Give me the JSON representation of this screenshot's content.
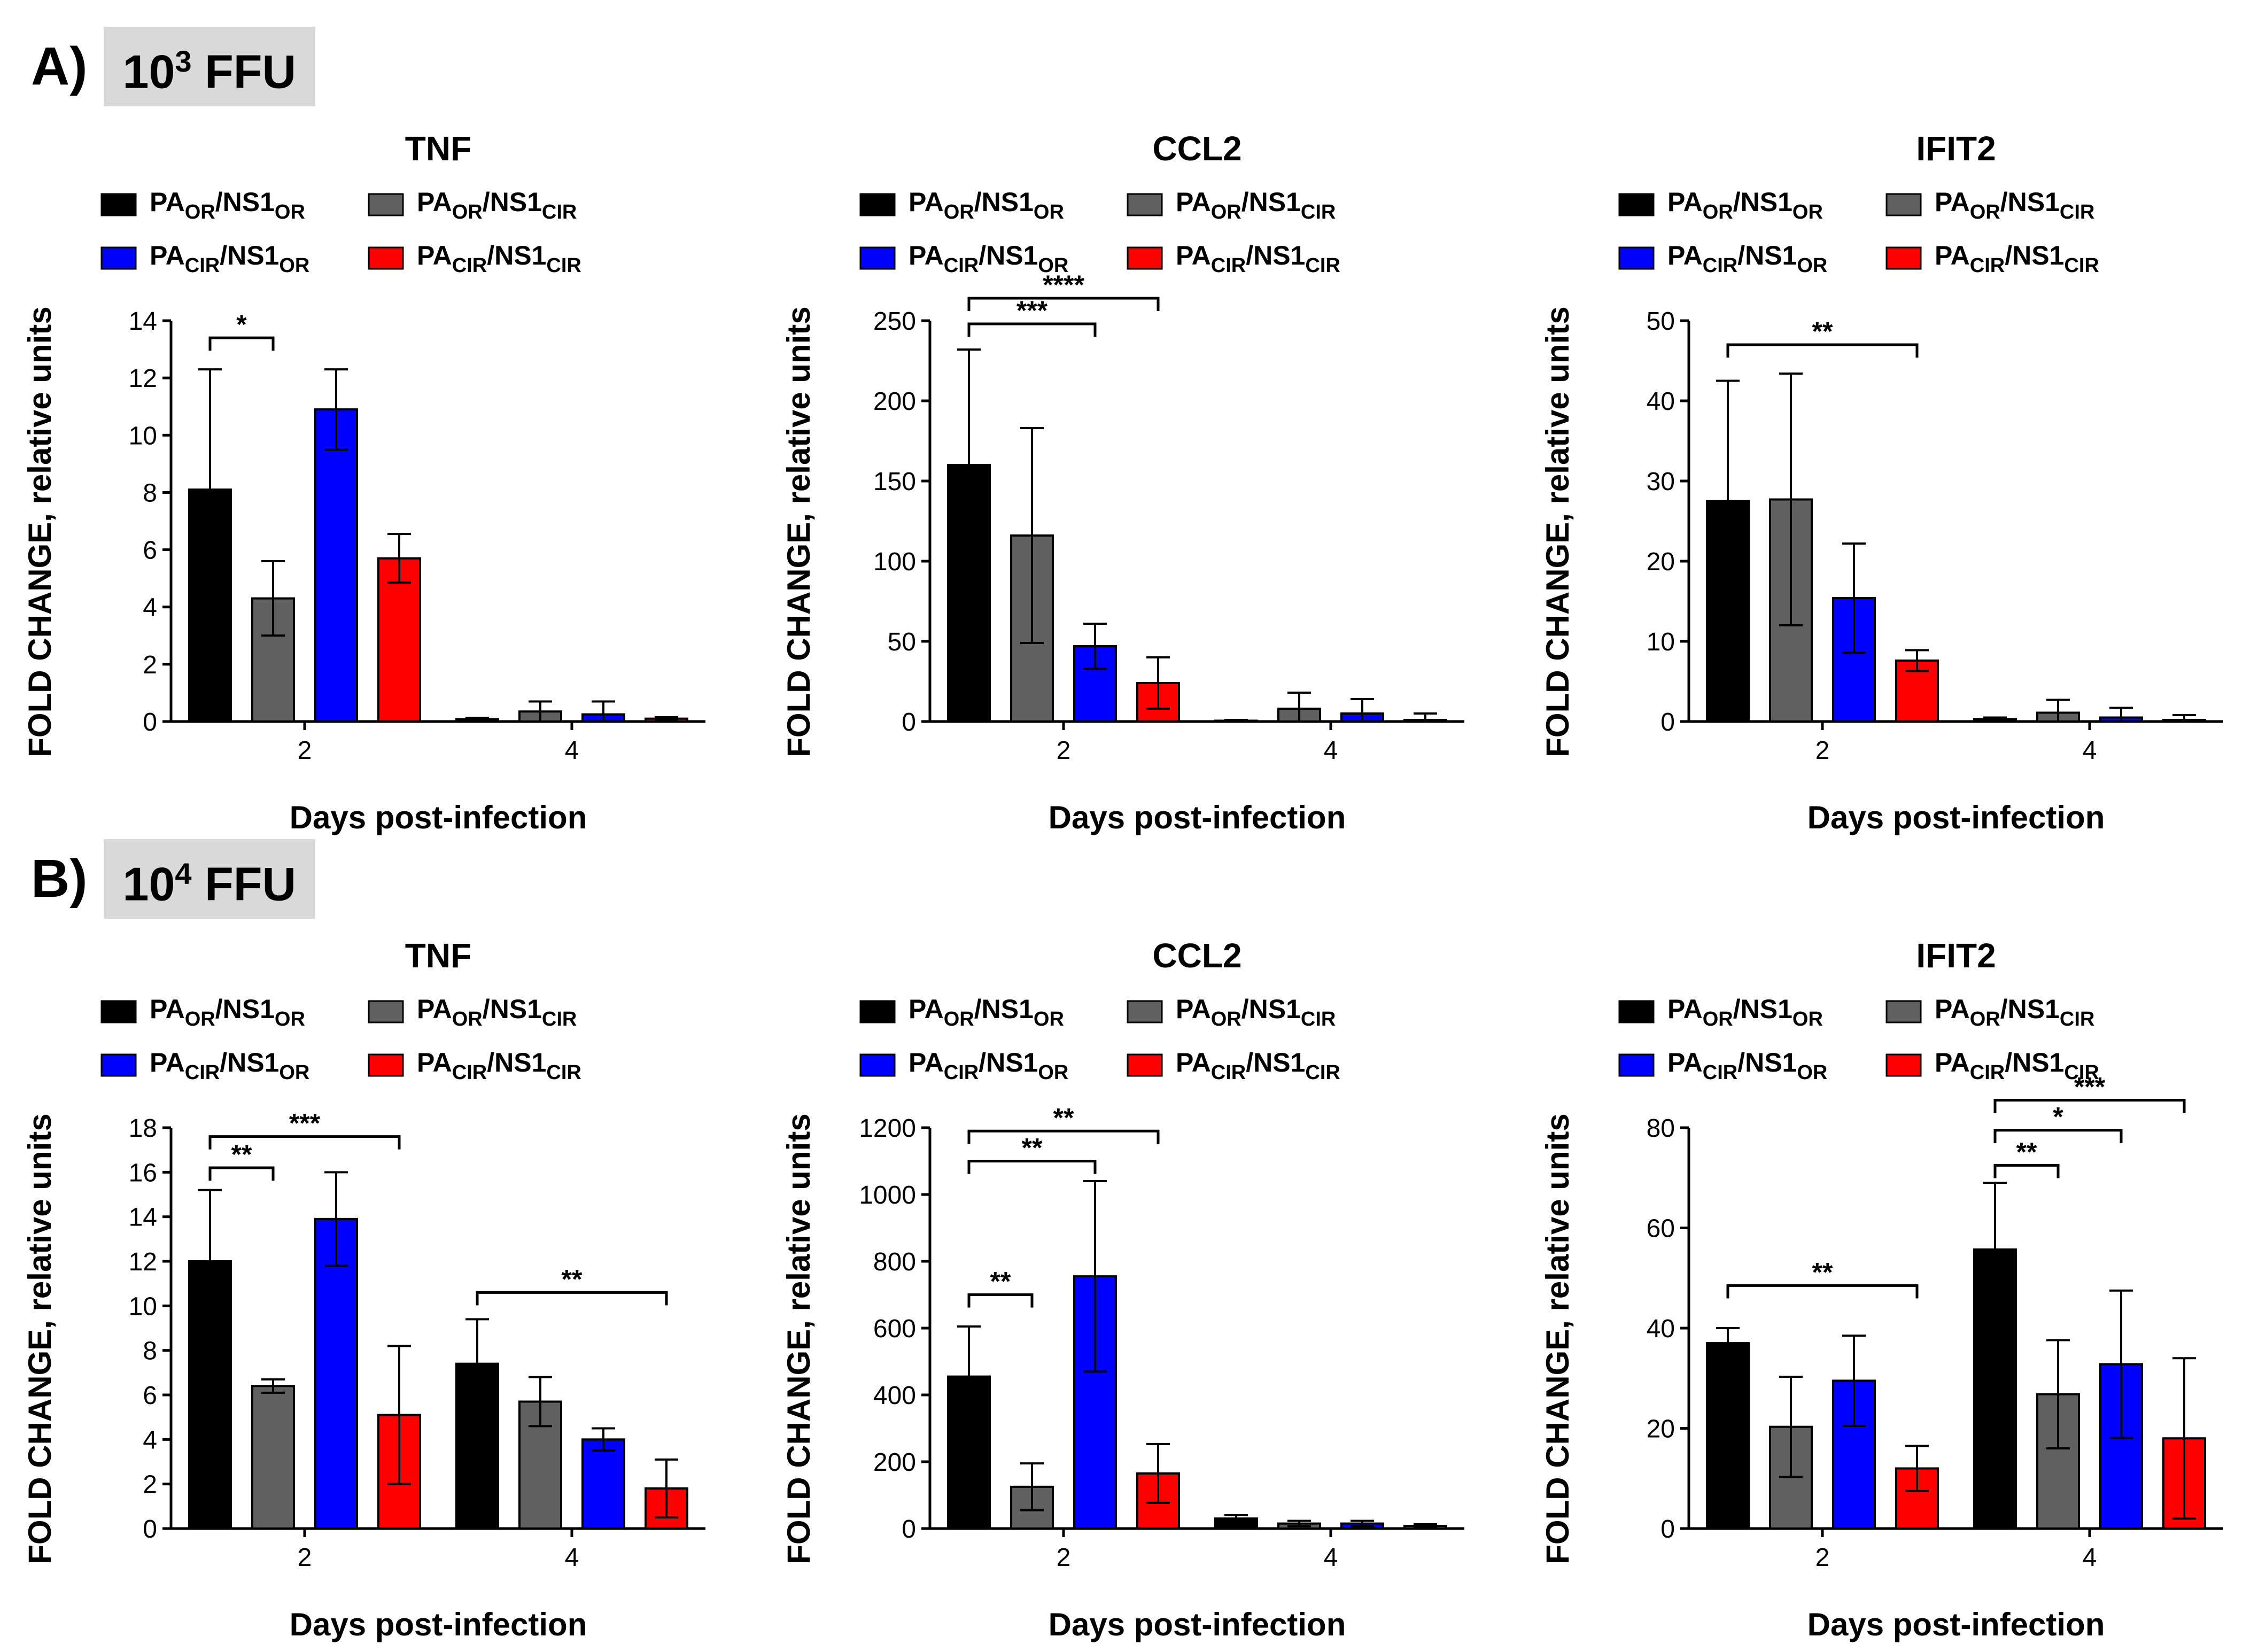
{
  "panels": [
    {
      "letter": "A)",
      "label_base": "10",
      "label_exp": "3",
      "label_unit": "FFU"
    },
    {
      "letter": "B)",
      "label_base": "10",
      "label_exp": "4",
      "label_unit": "FFU"
    }
  ],
  "legend_labels": [
    {
      "a": "PA",
      "a_sub": "OR",
      "b": "/NS1",
      "b_sub": "OR"
    },
    {
      "a": "PA",
      "a_sub": "OR",
      "b": "/NS1",
      "b_sub": "CIR"
    },
    {
      "a": "PA",
      "a_sub": "CIR",
      "b": "/NS1",
      "b_sub": "OR"
    },
    {
      "a": "PA",
      "a_sub": "CIR",
      "b": "/NS1",
      "b_sub": "CIR"
    }
  ],
  "colors": [
    "#000000",
    "#606060",
    "#0000ff",
    "#ff0000"
  ],
  "chart_data": [
    {
      "type": "bar",
      "panel": "A",
      "title": "TNF",
      "xlabel": "Days post-infection",
      "ylabel": "FOLD CHANGE, relative units",
      "categories": [
        "2",
        "4"
      ],
      "ylim": [
        0,
        14
      ],
      "yticks": [
        0,
        2,
        4,
        6,
        8,
        10,
        12,
        14
      ],
      "series": [
        {
          "values": [
            8.1,
            0.08
          ],
          "errors": [
            4.2,
            0.05
          ]
        },
        {
          "values": [
            4.3,
            0.35
          ],
          "errors": [
            1.3,
            0.35
          ]
        },
        {
          "values": [
            10.9,
            0.25
          ],
          "errors": [
            1.4,
            0.45
          ]
        },
        {
          "values": [
            5.7,
            0.1
          ],
          "errors": [
            0.85,
            0.05
          ]
        }
      ],
      "significance": [
        {
          "group": 0,
          "from": 0,
          "to": 1,
          "y": 13.4,
          "label": "*"
        }
      ]
    },
    {
      "type": "bar",
      "panel": "A",
      "title": "CCL2",
      "xlabel": "Days post-infection",
      "ylabel": "FOLD CHANGE, relative units",
      "categories": [
        "2",
        "4"
      ],
      "ylim": [
        0,
        250
      ],
      "yticks": [
        0,
        50,
        100,
        150,
        200,
        250
      ],
      "series": [
        {
          "values": [
            160,
            0.5
          ],
          "errors": [
            72,
            0.5
          ]
        },
        {
          "values": [
            116,
            8
          ],
          "errors": [
            67,
            10
          ]
        },
        {
          "values": [
            47,
            5
          ],
          "errors": [
            14,
            9
          ]
        },
        {
          "values": [
            24,
            1
          ],
          "errors": [
            16,
            4
          ]
        }
      ],
      "significance": [
        {
          "group": 0,
          "from": 0,
          "to": 2,
          "y": 248,
          "label": "***"
        },
        {
          "group": 0,
          "from": 0,
          "to": 3,
          "y": 264,
          "label": "****"
        }
      ]
    },
    {
      "type": "bar",
      "panel": "A",
      "title": "IFIT2",
      "xlabel": "Days post-infection",
      "ylabel": "FOLD CHANGE, relative units",
      "categories": [
        "2",
        "4"
      ],
      "ylim": [
        0,
        50
      ],
      "yticks": [
        0,
        10,
        20,
        30,
        40,
        50
      ],
      "series": [
        {
          "values": [
            27.5,
            0.3
          ],
          "errors": [
            15,
            0.2
          ]
        },
        {
          "values": [
            27.7,
            1.1
          ],
          "errors": [
            15.7,
            1.6
          ]
        },
        {
          "values": [
            15.4,
            0.5
          ],
          "errors": [
            6.8,
            1.2
          ]
        },
        {
          "values": [
            7.6,
            0.2
          ],
          "errors": [
            1.3,
            0.6
          ]
        }
      ],
      "significance": [
        {
          "group": 0,
          "from": 0,
          "to": 3,
          "y": 47,
          "label": "**"
        }
      ]
    },
    {
      "type": "bar",
      "panel": "B",
      "title": "TNF",
      "xlabel": "Days post-infection",
      "ylabel": "FOLD CHANGE, relative units",
      "categories": [
        "2",
        "4"
      ],
      "ylim": [
        0,
        18
      ],
      "yticks": [
        0,
        2,
        4,
        6,
        8,
        10,
        12,
        14,
        16,
        18
      ],
      "series": [
        {
          "values": [
            12,
            7.4
          ],
          "errors": [
            3.2,
            2
          ]
        },
        {
          "values": [
            6.4,
            5.7
          ],
          "errors": [
            0.3,
            1.1
          ]
        },
        {
          "values": [
            13.9,
            4
          ],
          "errors": [
            2.1,
            0.5
          ]
        },
        {
          "values": [
            5.1,
            1.8
          ],
          "errors": [
            3.1,
            1.3
          ]
        }
      ],
      "significance": [
        {
          "group": 0,
          "from": 0,
          "to": 1,
          "y": 16.2,
          "label": "**"
        },
        {
          "group": 0,
          "from": 0,
          "to": 3,
          "y": 17.6,
          "label": "***"
        },
        {
          "group": 1,
          "from": 0,
          "to": 3,
          "y": 10.6,
          "label": "**"
        }
      ]
    },
    {
      "type": "bar",
      "panel": "B",
      "title": "CCL2",
      "xlabel": "Days post-infection",
      "ylabel": "FOLD CHANGE, relative units",
      "categories": [
        "2",
        "4"
      ],
      "ylim": [
        0,
        1200
      ],
      "yticks": [
        0,
        200,
        400,
        600,
        800,
        1000,
        1200
      ],
      "series": [
        {
          "values": [
            455,
            30
          ],
          "errors": [
            150,
            10
          ]
        },
        {
          "values": [
            125,
            15
          ],
          "errors": [
            70,
            8
          ]
        },
        {
          "values": [
            755,
            15
          ],
          "errors": [
            285,
            8
          ]
        },
        {
          "values": [
            165,
            8
          ],
          "errors": [
            88,
            5
          ]
        }
      ],
      "significance": [
        {
          "group": 0,
          "from": 0,
          "to": 1,
          "y": 700,
          "label": "**"
        },
        {
          "group": 0,
          "from": 0,
          "to": 2,
          "y": 1100,
          "label": "**"
        },
        {
          "group": 0,
          "from": 0,
          "to": 3,
          "y": 1190,
          "label": "**"
        }
      ]
    },
    {
      "type": "bar",
      "panel": "B",
      "title": "IFIT2",
      "xlabel": "Days post-infection",
      "ylabel": "FOLD CHANGE, relative units",
      "categories": [
        "2",
        "4"
      ],
      "ylim": [
        0,
        80
      ],
      "yticks": [
        0,
        20,
        40,
        60,
        80
      ],
      "series": [
        {
          "values": [
            37,
            55.7
          ],
          "errors": [
            3,
            13.3
          ]
        },
        {
          "values": [
            20.3,
            26.8
          ],
          "errors": [
            10,
            10.8
          ]
        },
        {
          "values": [
            29.5,
            32.8
          ],
          "errors": [
            9,
            14.7
          ]
        },
        {
          "values": [
            12,
            18
          ],
          "errors": [
            4.5,
            16
          ]
        }
      ],
      "significance": [
        {
          "group": 0,
          "from": 0,
          "to": 3,
          "y": 48.5,
          "label": "**"
        },
        {
          "group": 1,
          "from": 0,
          "to": 1,
          "y": 72.5,
          "label": "**"
        },
        {
          "group": 1,
          "from": 0,
          "to": 2,
          "y": 79.5,
          "label": "*"
        },
        {
          "group": 1,
          "from": 0,
          "to": 3,
          "y": 85.5,
          "label": "***"
        }
      ]
    }
  ]
}
